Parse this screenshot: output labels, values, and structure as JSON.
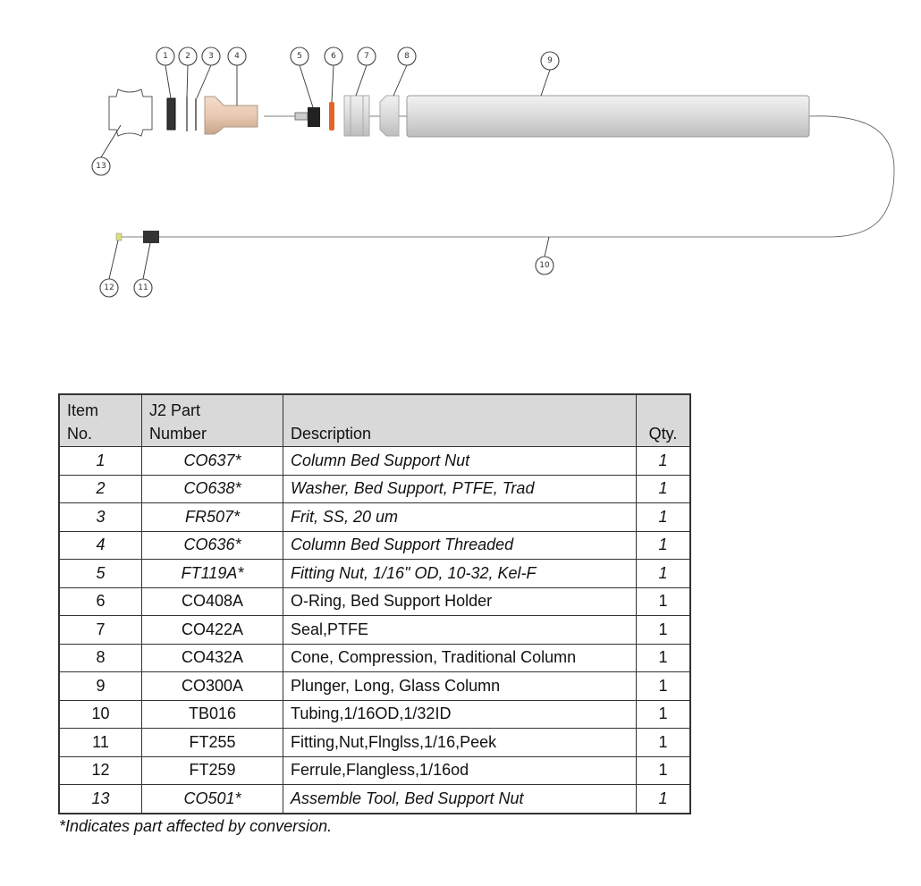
{
  "diagram": {
    "callouts": [
      "1",
      "2",
      "3",
      "4",
      "5",
      "6",
      "7",
      "8",
      "9",
      "10",
      "11",
      "12",
      "13"
    ],
    "colors": {
      "bed_support": "#e9c9b1",
      "o_ring": "#e2662a",
      "glass": "#d8d8d8",
      "nut": "#222222"
    }
  },
  "table": {
    "headers": {
      "item": [
        "Item",
        "No."
      ],
      "part": [
        "J2 Part",
        "Number"
      ],
      "description": "Description",
      "qty": "Qty."
    },
    "rows": [
      {
        "item": "1",
        "part": "CO637*",
        "description": "Column Bed Support Nut",
        "qty": "1",
        "italic": true
      },
      {
        "item": "2",
        "part": "CO638*",
        "description": "Washer, Bed Support, PTFE, Trad",
        "qty": "1",
        "italic": true
      },
      {
        "item": "3",
        "part": "FR507*",
        "description": "Frit, SS, 20 um",
        "qty": "1",
        "italic": true
      },
      {
        "item": "4",
        "part": "CO636*",
        "description": "Column Bed Support Threaded",
        "qty": "1",
        "italic": true
      },
      {
        "item": "5",
        "part": "FT119A*",
        "description": "Fitting Nut, 1/16\" OD, 10-32, Kel-F",
        "qty": "1",
        "italic": true
      },
      {
        "item": "6",
        "part": "CO408A",
        "description": "O-Ring, Bed Support Holder",
        "qty": "1",
        "italic": false
      },
      {
        "item": "7",
        "part": "CO422A",
        "description": "Seal,PTFE",
        "qty": "1",
        "italic": false
      },
      {
        "item": "8",
        "part": "CO432A",
        "description": "Cone, Compression, Traditional Column",
        "qty": "1",
        "italic": false
      },
      {
        "item": "9",
        "part": "CO300A",
        "description": "Plunger, Long, Glass Column",
        "qty": "1",
        "italic": false
      },
      {
        "item": "10",
        "part": "TB016",
        "description": "Tubing,1/16OD,1/32ID",
        "qty": "1",
        "italic": false
      },
      {
        "item": "11",
        "part": "FT255",
        "description": "Fitting,Nut,Flnglss,1/16,Peek",
        "qty": "1",
        "italic": false
      },
      {
        "item": "12",
        "part": "FT259",
        "description": "Ferrule,Flangless,1/16od",
        "qty": "1",
        "italic": false
      },
      {
        "item": "13",
        "part": "CO501*",
        "description": "Assemble Tool, Bed Support Nut",
        "qty": "1",
        "italic": true
      }
    ]
  },
  "footnote": "*Indicates part affected by conversion."
}
